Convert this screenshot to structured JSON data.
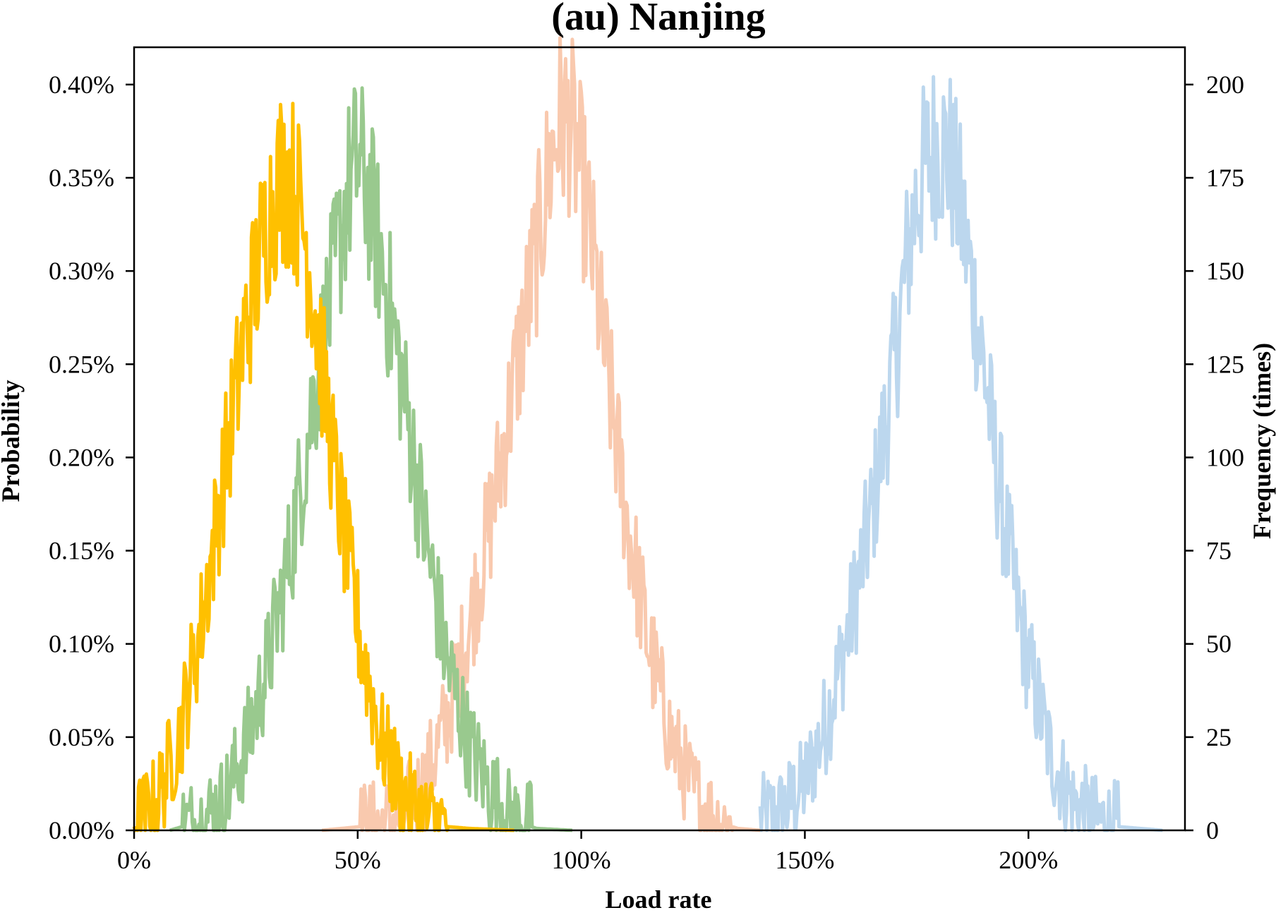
{
  "chart_data": {
    "type": "line",
    "title": "(au) Nanjing",
    "xlabel": "Load rate",
    "ylabel": "Probability",
    "y2label": "Frequency (times)",
    "xlim": [
      0,
      2.35
    ],
    "ylim": [
      0,
      0.0042
    ],
    "y2lim": [
      0,
      210
    ],
    "x_ticks": [
      0,
      0.5,
      1.0,
      1.5,
      2.0
    ],
    "x_tick_labels": [
      "0%",
      "50%",
      "100%",
      "150%",
      "200%"
    ],
    "y_ticks": [
      0,
      0.0005,
      0.001,
      0.0015,
      0.002,
      0.0025,
      0.003,
      0.0035,
      0.004
    ],
    "y_tick_labels": [
      "0.00%",
      "0.05%",
      "0.10%",
      "0.15%",
      "0.20%",
      "0.25%",
      "0.30%",
      "0.35%",
      "0.40%"
    ],
    "y2_ticks": [
      0,
      25,
      50,
      75,
      100,
      125,
      150,
      175,
      200
    ],
    "y2_tick_labels": [
      "0",
      "25",
      "50",
      "75",
      "100",
      "125",
      "150",
      "175",
      "200"
    ],
    "grid": false,
    "legend": "none",
    "series": [
      {
        "color": "#bcd7ee",
        "x": [
          1.4,
          1.45,
          1.5,
          1.55,
          1.6,
          1.625,
          1.65,
          1.675,
          1.7,
          1.725,
          1.75,
          1.775,
          1.8,
          1.825,
          1.85,
          1.875,
          1.9,
          1.925,
          1.95,
          1.975,
          2.0,
          2.05,
          2.1,
          2.15,
          2.2,
          2.25,
          2.3
        ],
        "y": [
          5e-05,
          0.0001,
          0.00025,
          0.0006,
          0.0011,
          0.0014,
          0.0017,
          0.0021,
          0.0025,
          0.003,
          0.0034,
          0.0036,
          0.0037,
          0.0036,
          0.0033,
          0.0029,
          0.0025,
          0.002,
          0.0016,
          0.0012,
          0.0009,
          0.0004,
          0.00015,
          5e-05,
          2e-05,
          1e-05,
          0.0
        ]
      },
      {
        "color": "#f9c9ae",
        "x": [
          0.42,
          0.55,
          0.6,
          0.65,
          0.7,
          0.75,
          0.8,
          0.85,
          0.9,
          0.925,
          0.95,
          0.975,
          1.0,
          1.025,
          1.05,
          1.1,
          1.15,
          1.2,
          1.25,
          1.3,
          1.35,
          1.4
        ],
        "y": [
          0.0,
          3e-05,
          8e-05,
          0.00025,
          0.0006,
          0.0011,
          0.0017,
          0.0024,
          0.0031,
          0.0035,
          0.0038,
          0.0038,
          0.0035,
          0.0031,
          0.0026,
          0.0017,
          0.001,
          0.0005,
          0.0002,
          5e-05,
          1e-05,
          0.0
        ]
      },
      {
        "color": "#99c98e",
        "x": [
          0.08,
          0.15,
          0.2,
          0.25,
          0.3,
          0.35,
          0.4,
          0.45,
          0.475,
          0.5,
          0.525,
          0.55,
          0.6,
          0.65,
          0.7,
          0.75,
          0.8,
          0.85,
          0.9,
          0.98
        ],
        "y": [
          0.0,
          5e-05,
          0.00015,
          0.00045,
          0.0009,
          0.0015,
          0.0023,
          0.003,
          0.0034,
          0.0036,
          0.0034,
          0.0031,
          0.0024,
          0.0016,
          0.0009,
          0.00045,
          0.0002,
          5e-05,
          1e-05,
          0.0
        ]
      },
      {
        "color": "#ffc000",
        "x": [
          0.0,
          0.05,
          0.1,
          0.15,
          0.2,
          0.25,
          0.3,
          0.325,
          0.35,
          0.375,
          0.4,
          0.45,
          0.5,
          0.55,
          0.6,
          0.65,
          0.7,
          0.75,
          0.85
        ],
        "y": [
          2e-05,
          0.00015,
          0.0005,
          0.0011,
          0.0019,
          0.0027,
          0.0033,
          0.0035,
          0.0035,
          0.0033,
          0.0029,
          0.0019,
          0.0011,
          0.0005,
          0.0002,
          7e-05,
          2e-05,
          1e-05,
          0.0
        ]
      }
    ]
  }
}
